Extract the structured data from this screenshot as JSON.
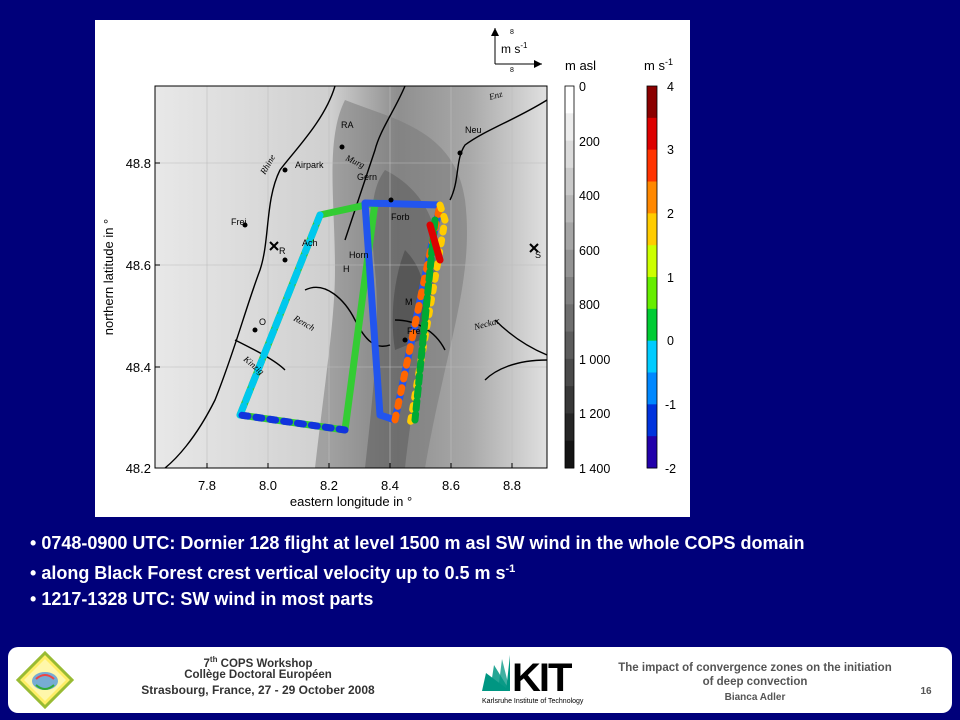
{
  "figure": {
    "x_ticks": [
      "7.8",
      "8.0",
      "8.2",
      "8.4",
      "8.6",
      "8.8"
    ],
    "y_ticks": [
      "48.2",
      "48.4",
      "48.6",
      "48.8"
    ],
    "xlabel": "eastern longitude in °",
    "ylabel": "northern latitude in °",
    "wind_ref": {
      "unit": "m s",
      "exp": "-1",
      "top": "8",
      "bottom": "8"
    },
    "height_bar": {
      "unit": "m asl",
      "ticks": [
        "0",
        "200",
        "400",
        "600",
        "800",
        "1 000",
        "1 200",
        "1 400"
      ]
    },
    "velocity_bar": {
      "unit": "m s",
      "exp": "-1",
      "ticks": [
        "4",
        "3",
        "2",
        "1",
        "0",
        "-1",
        "-2"
      ],
      "colors": [
        "#8b0000",
        "#dd0000",
        "#ff3300",
        "#ff8800",
        "#ffcc00",
        "#ccff00",
        "#66ee00",
        "#00cc33",
        "#00ccff",
        "#0088ff",
        "#0033dd",
        "#2200aa"
      ]
    },
    "places": [
      "RA",
      "Neu",
      "Airpark",
      "Gern",
      "Forb",
      "Frei",
      "Ach",
      "R",
      "Horn",
      "H",
      "O",
      "Fre",
      "S",
      "M"
    ],
    "rivers": [
      "Enz",
      "Rhine",
      "Murg",
      "Rench",
      "Kinzig",
      "Neckar"
    ]
  },
  "bullets": [
    {
      "text": "0748-0900 UTC: Dornier 128 flight at level 1500 m asl  SW wind in the whole COPS domain"
    },
    {
      "text": "along Black Forest crest vertical velocity up to 0.5 m s",
      "sup": "-1"
    },
    {
      "text": "1217-1328 UTC: SW wind in most parts"
    }
  ],
  "footer": {
    "workshop_ord": "7",
    "workshop_sup": "th",
    "workshop_rest": " COPS Workshop",
    "venue": "Collège Doctoral Européen",
    "place_date": "Strasbourg, France, 27 - 29 October 2008",
    "kit_text": "Karlsruhe Institute of Technology",
    "talk_title_1": "The impact of convergence zones on the initiation",
    "talk_title_2": "of deep convection",
    "author": "Bianca Adler",
    "page_number": "16"
  }
}
